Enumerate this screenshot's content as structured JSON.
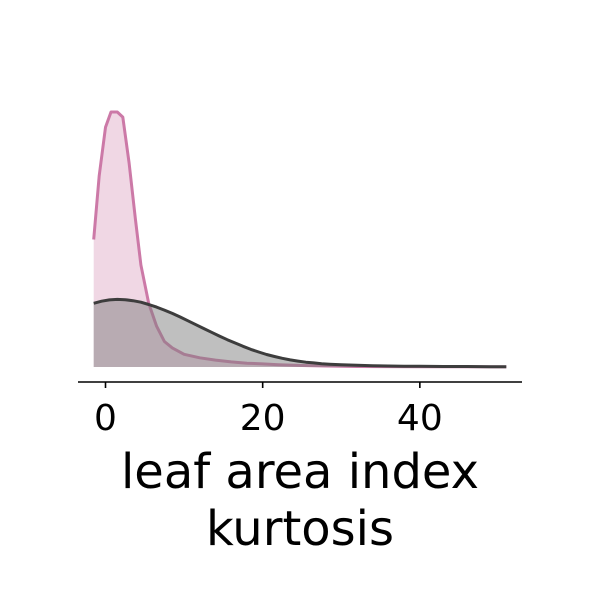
{
  "chart_data": {
    "type": "area",
    "xlabel_lines": [
      "leaf area index",
      "kurtosis"
    ],
    "xlim": [
      -3.5,
      53
    ],
    "ylim": [
      0,
      0.115
    ],
    "xticks": [
      0,
      20,
      40
    ],
    "xtick_labels": [
      "0",
      "20",
      "40"
    ],
    "grid": false,
    "legend": "none",
    "series": [
      {
        "color": "#cc79a7",
        "fill": "#cc79a7",
        "fill_opacity": 0.3,
        "x": [
          -1.5,
          -0.8,
          0,
          0.7,
          1.5,
          2.2,
          3,
          3.8,
          4.5,
          5.5,
          6.5,
          7.5,
          8.5,
          10,
          12,
          14,
          16,
          18,
          20,
          22,
          25,
          28,
          30,
          32,
          35,
          40,
          45,
          51
        ],
        "y": [
          0.05,
          0.075,
          0.094,
          0.1,
          0.1,
          0.098,
          0.08,
          0.058,
          0.04,
          0.025,
          0.016,
          0.01,
          0.0075,
          0.005,
          0.0036,
          0.0027,
          0.002,
          0.0015,
          0.0012,
          0.0009,
          0.0006,
          0.0004,
          0.0003,
          0.0002,
          0.00015,
          0.0001,
          6e-05,
          3e-05
        ]
      },
      {
        "color": "#3d3d3d",
        "fill": "#808080",
        "fill_opacity": 0.5,
        "x": [
          -1.5,
          -0.5,
          0.5,
          1.5,
          2.5,
          3.5,
          4.5,
          5.5,
          6.5,
          7.5,
          8.5,
          9.5,
          10.5,
          11.5,
          12.5,
          13.5,
          14.5,
          15.5,
          16.5,
          17.5,
          18.5,
          19.5,
          20.5,
          21.5,
          22.5,
          23.5,
          24.5,
          25.5,
          26.5,
          27.5,
          28.5,
          30,
          32,
          34,
          36,
          38,
          40,
          43,
          46,
          49,
          51
        ],
        "y": [
          0.025,
          0.0258,
          0.0263,
          0.0265,
          0.0264,
          0.026,
          0.0254,
          0.0245,
          0.0235,
          0.0223,
          0.021,
          0.0196,
          0.0181,
          0.0166,
          0.0151,
          0.0136,
          0.0121,
          0.0107,
          0.0094,
          0.0081,
          0.0069,
          0.0059,
          0.0049,
          0.0041,
          0.0034,
          0.0028,
          0.0023,
          0.0019,
          0.0016,
          0.0013,
          0.0011,
          0.0009,
          0.0007,
          0.0005,
          0.0004,
          0.0003,
          0.0003,
          0.0002,
          0.0002,
          0.0001,
          0.0001
        ]
      }
    ]
  }
}
